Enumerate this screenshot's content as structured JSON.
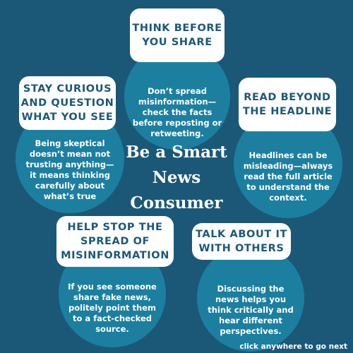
{
  "title": "Be a Smart\nNews\nConsumer",
  "tips": [
    {
      "heading": "Think before\nyou share",
      "body": "Don’t spread\nmisinformation—\ncheck the facts\nbefore reposting or\nretweeting."
    },
    {
      "heading": "Stay curious\nand question\nwhat you see",
      "body": "Being skeptical\ndoesn’t mean not\ntrusting anything—\nit means thinking\ncarefully about\nwhat’s true"
    },
    {
      "heading": "Read beyond\nthe headline",
      "body": "Headlines can be\nmisleading—always\nread the full article\nto understand the\ncontext."
    },
    {
      "heading": "Help stop the\nspread of\nmisinformation",
      "body": "If you see someone\nshare fake news,\npolitely point them\nto a fact-checked\nsource."
    },
    {
      "heading": "Talk about it\nwith others",
      "body": "Discussing the\nnews helps you\nthink critically and\nhear different\nperspectives."
    }
  ],
  "footer": "click anywhere to go next",
  "colors": {
    "background": "#1b5878",
    "circle": "#1c7fa0",
    "card": "#ffffff",
    "heading_text": "#1b5878"
  }
}
